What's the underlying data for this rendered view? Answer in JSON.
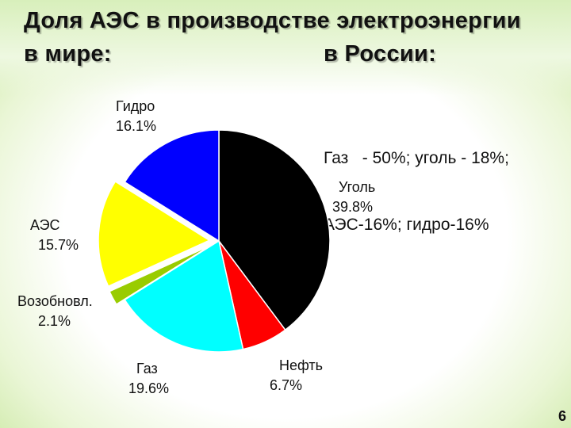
{
  "slide": {
    "title_line1": "Доля АЭС в производстве электроэнергии",
    "title_world": "в мире:",
    "title_russia": "в России:",
    "russia_line1": "Газ   - 50%; уголь - 18%;",
    "russia_line2": "АЭС-16%; гидро-16%",
    "page_number": "6"
  },
  "chart_data": {
    "type": "pie",
    "title": "",
    "slices": [
      {
        "name": "Уголь",
        "label": "39.8%",
        "value": 39.8,
        "color": "#000000"
      },
      {
        "name": "Нефть",
        "label": "6.7%",
        "value": 6.7,
        "color": "#ff0000"
      },
      {
        "name": "Газ",
        "label": "19.6%",
        "value": 19.6,
        "color": "#00ffff"
      },
      {
        "name": "Возобновл.",
        "label": "2.1%",
        "value": 2.1,
        "color": "#99cc00",
        "exploded": true
      },
      {
        "name": "АЭС",
        "label": "15.7%",
        "value": 15.7,
        "color": "#ffff00",
        "exploded": true
      },
      {
        "name": "Гидро",
        "label": "16.1%",
        "value": 16.1,
        "color": "#0000ff"
      }
    ],
    "start": "top",
    "direction": "clockwise"
  }
}
